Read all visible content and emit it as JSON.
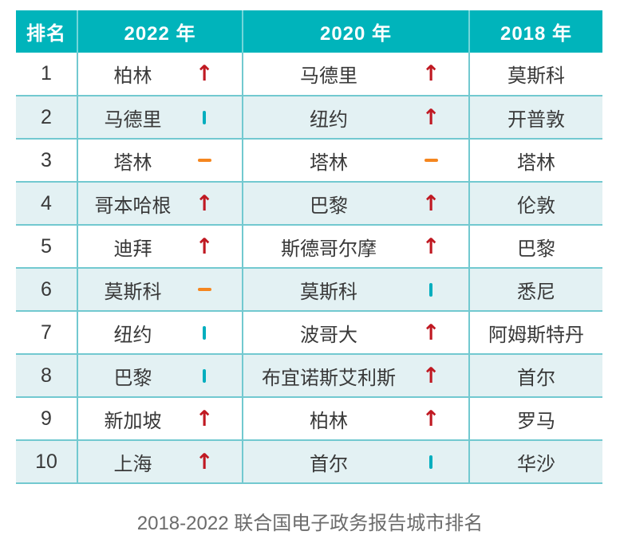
{
  "table": {
    "headers": [
      {
        "key": "rank",
        "label": "排名"
      },
      {
        "key": "y2022",
        "label": "2022 年"
      },
      {
        "key": "y2020",
        "label": "2020 年"
      },
      {
        "key": "y2018",
        "label": "2018 年"
      }
    ],
    "rows": [
      {
        "rank": "1",
        "y2022": {
          "city": "柏林",
          "trend": "up"
        },
        "y2020": {
          "city": "马德里",
          "trend": "up"
        },
        "y2018": {
          "city": "莫斯科"
        }
      },
      {
        "rank": "2",
        "y2022": {
          "city": "马德里",
          "trend": "down"
        },
        "y2020": {
          "city": "纽约",
          "trend": "up"
        },
        "y2018": {
          "city": "开普敦"
        }
      },
      {
        "rank": "3",
        "y2022": {
          "city": "塔林",
          "trend": "same"
        },
        "y2020": {
          "city": "塔林",
          "trend": "same"
        },
        "y2018": {
          "city": "塔林"
        }
      },
      {
        "rank": "4",
        "y2022": {
          "city": "哥本哈根",
          "trend": "up"
        },
        "y2020": {
          "city": "巴黎",
          "trend": "up"
        },
        "y2018": {
          "city": "伦敦"
        }
      },
      {
        "rank": "5",
        "y2022": {
          "city": "迪拜",
          "trend": "up"
        },
        "y2020": {
          "city": "斯德哥尔摩",
          "trend": "up"
        },
        "y2018": {
          "city": "巴黎"
        }
      },
      {
        "rank": "6",
        "y2022": {
          "city": "莫斯科",
          "trend": "same"
        },
        "y2020": {
          "city": "莫斯科",
          "trend": "down"
        },
        "y2018": {
          "city": "悉尼"
        }
      },
      {
        "rank": "7",
        "y2022": {
          "city": "纽约",
          "trend": "down"
        },
        "y2020": {
          "city": "波哥大",
          "trend": "up"
        },
        "y2018": {
          "city": "阿姆斯特丹"
        }
      },
      {
        "rank": "8",
        "y2022": {
          "city": "巴黎",
          "trend": "down"
        },
        "y2020": {
          "city": "布宜诺斯艾利斯",
          "trend": "up"
        },
        "y2018": {
          "city": "首尔"
        }
      },
      {
        "rank": "9",
        "y2022": {
          "city": "新加坡",
          "trend": "up"
        },
        "y2020": {
          "city": "柏林",
          "trend": "up"
        },
        "y2018": {
          "city": "罗马"
        }
      },
      {
        "rank": "10",
        "y2022": {
          "city": "上海",
          "trend": "up"
        },
        "y2020": {
          "city": "首尔",
          "trend": "down"
        },
        "y2018": {
          "city": "华沙"
        }
      }
    ]
  },
  "caption": "2018-2022 联合国电子政务报告城市排名",
  "trend_glyphs": {
    "up": "↑"
  },
  "colors": {
    "header_bg": "#00b4bb",
    "row_alt_bg": "#e3f1f3",
    "grid_line": "#72c9d0",
    "trend_up": "#c01922",
    "trend_same": "#f5861f",
    "trend_down": "#00aebe",
    "body_text": "#393939",
    "caption_text": "#6b6b6b"
  }
}
